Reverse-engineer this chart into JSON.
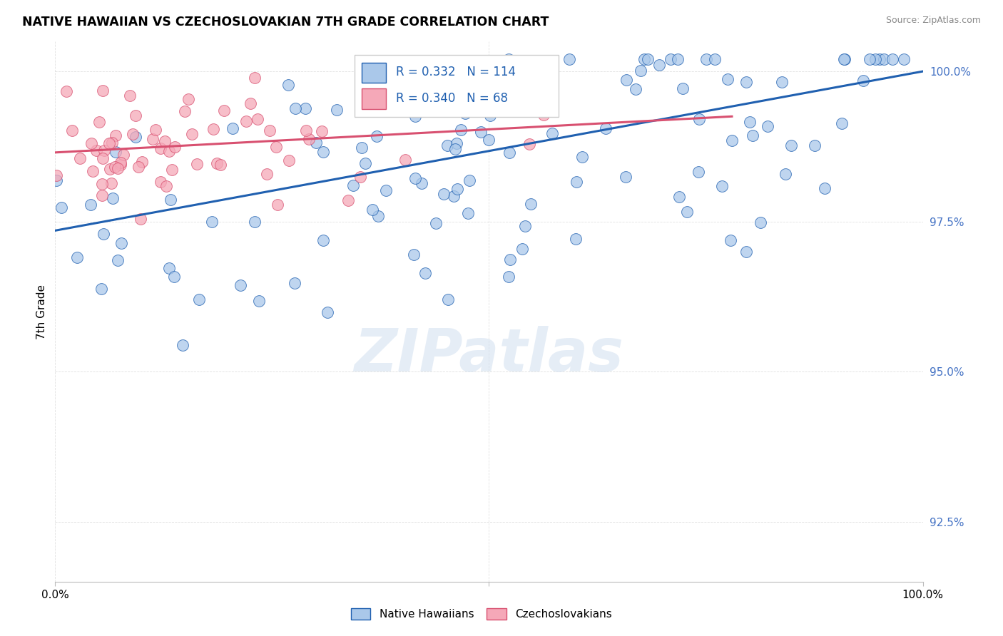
{
  "title": "NATIVE HAWAIIAN VS CZECHOSLOVAKIAN 7TH GRADE CORRELATION CHART",
  "source": "Source: ZipAtlas.com",
  "ylabel": "7th Grade",
  "xlim": [
    0.0,
    1.0
  ],
  "ylim": [
    0.915,
    1.005
  ],
  "yticks": [
    0.925,
    0.95,
    0.975,
    1.0
  ],
  "ytick_labels": [
    "92.5%",
    "95.0%",
    "97.5%",
    "100.0%"
  ],
  "xticks": [
    0.0,
    0.5,
    1.0
  ],
  "xtick_labels": [
    "0.0%",
    "",
    "100.0%"
  ],
  "legend_r_blue": "0.332",
  "legend_n_blue": "114",
  "legend_r_pink": "0.340",
  "legend_n_pink": "68",
  "blue_color": "#aac8ea",
  "pink_color": "#f5a8b8",
  "line_blue": "#2060b0",
  "line_pink": "#d85070",
  "text_blue": "#2060b0",
  "watermark_color": "#d0dff0",
  "grid_color": "#dddddd",
  "ytick_color": "#4472c4",
  "blue_line_start_y": 0.9735,
  "blue_line_end_y": 1.0,
  "pink_line_start_y": 0.9865,
  "pink_line_end_y": 0.9925,
  "pink_line_end_x": 0.78
}
